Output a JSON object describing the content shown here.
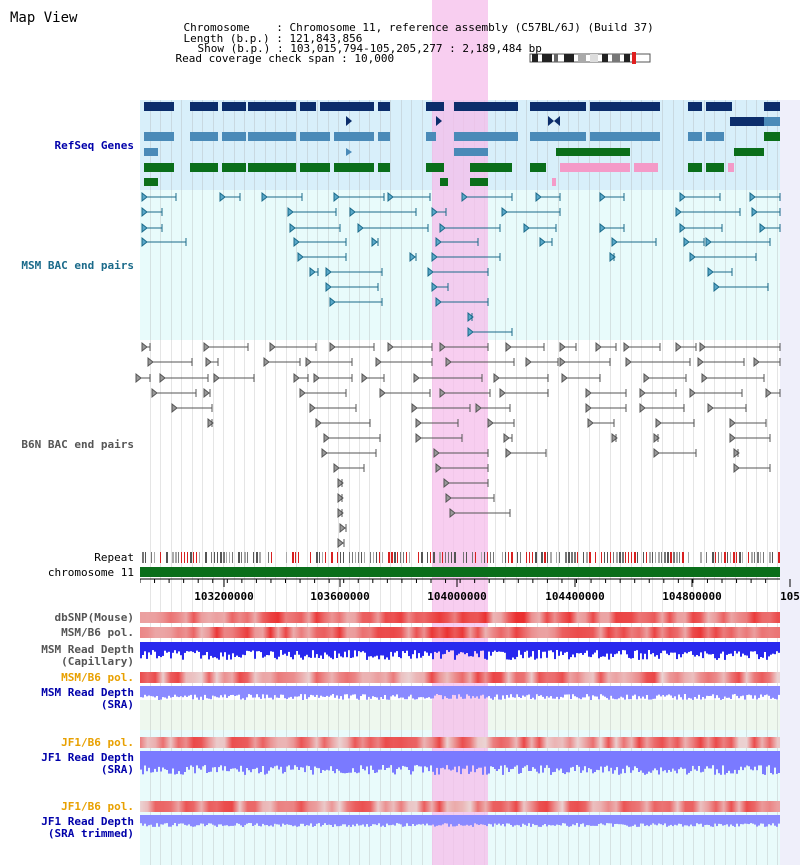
{
  "view_title": "Map View",
  "header": {
    "chromosome_label": "Chromosome",
    "chromosome_value": "Chromosome 11, reference assembly (C57BL/6J) (Build 37)",
    "length_label": "Length (b.p.)",
    "length_value": "121,843,856",
    "show_label": "Show (b.p.)",
    "show_value": "103,015,794-105,205,277 : 2,189,484 bp",
    "coverage_label": "Read coverage check span",
    "coverage_value": "10,000"
  },
  "tracks": {
    "refseq": "RefSeq Genes",
    "msm_bac": "MSM BAC end pairs",
    "b6n_bac": "B6N BAC end pairs",
    "repeat": "Repeat",
    "chromosome": "chromosome 11",
    "dbsnp": "dbSNP(Mouse)",
    "msm_pol1": "MSM/B6 pol.",
    "msm_depth_cap_1": "MSM Read Depth",
    "msm_depth_cap_2": "(Capillary)",
    "msm_pol2": "MSM/B6 pol.",
    "msm_depth_sra_1": "MSM Read Depth",
    "msm_depth_sra_2": "(SRA)",
    "jf1_pol1": "JF1/B6 pol.",
    "jf1_depth_sra_1": "JF1 Read Depth",
    "jf1_depth_sra_2": "(SRA)",
    "jf1_pol2": "JF1/B6 pol.",
    "jf1_depth_trim_1": "JF1 Read Depth",
    "jf1_depth_trim_2": "(SRA trimmed)"
  },
  "axis_ticks": [
    "103200000",
    "103600000",
    "104000000",
    "104400000",
    "104800000",
    "105"
  ],
  "colors": {
    "refseq_dark": "#0b2d6b",
    "refseq_mid": "#4a8ab8",
    "refseq_green": "#0a6e1a",
    "bac_msm": "#1a6a8a",
    "bac_b6n": "#555555",
    "highlight": "#f5c8ef",
    "label_blue": "#0000aa",
    "label_orange": "#e8a000",
    "depth_blue": "#3a3aff",
    "depth_light": "#8a8aff",
    "pol_red": "#e83030"
  }
}
